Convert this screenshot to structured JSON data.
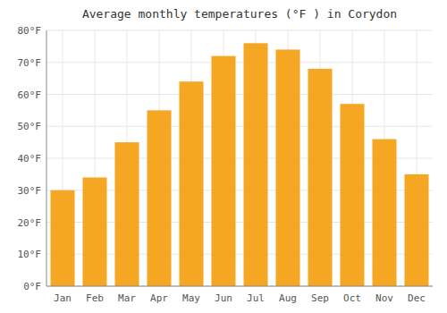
{
  "chart_data": {
    "type": "bar",
    "title": "Average monthly temperatures (°F ) in Corydon",
    "categories": [
      "Jan",
      "Feb",
      "Mar",
      "Apr",
      "May",
      "Jun",
      "Jul",
      "Aug",
      "Sep",
      "Oct",
      "Nov",
      "Dec"
    ],
    "values": [
      30,
      34,
      45,
      55,
      64,
      72,
      76,
      74,
      68,
      57,
      46,
      35
    ],
    "color": "#F5A623",
    "ylim": [
      0,
      80
    ],
    "yticks": [
      {
        "value": 0,
        "label": "0°F"
      },
      {
        "value": 10,
        "label": "10°F"
      },
      {
        "value": 20,
        "label": "20°F"
      },
      {
        "value": 30,
        "label": "30°F"
      },
      {
        "value": 40,
        "label": "40°F"
      },
      {
        "value": 50,
        "label": "50°F"
      },
      {
        "value": 60,
        "label": "60°F"
      },
      {
        "value": 70,
        "label": "70°F"
      },
      {
        "value": 80,
        "label": "80°F"
      }
    ],
    "grid": true
  }
}
